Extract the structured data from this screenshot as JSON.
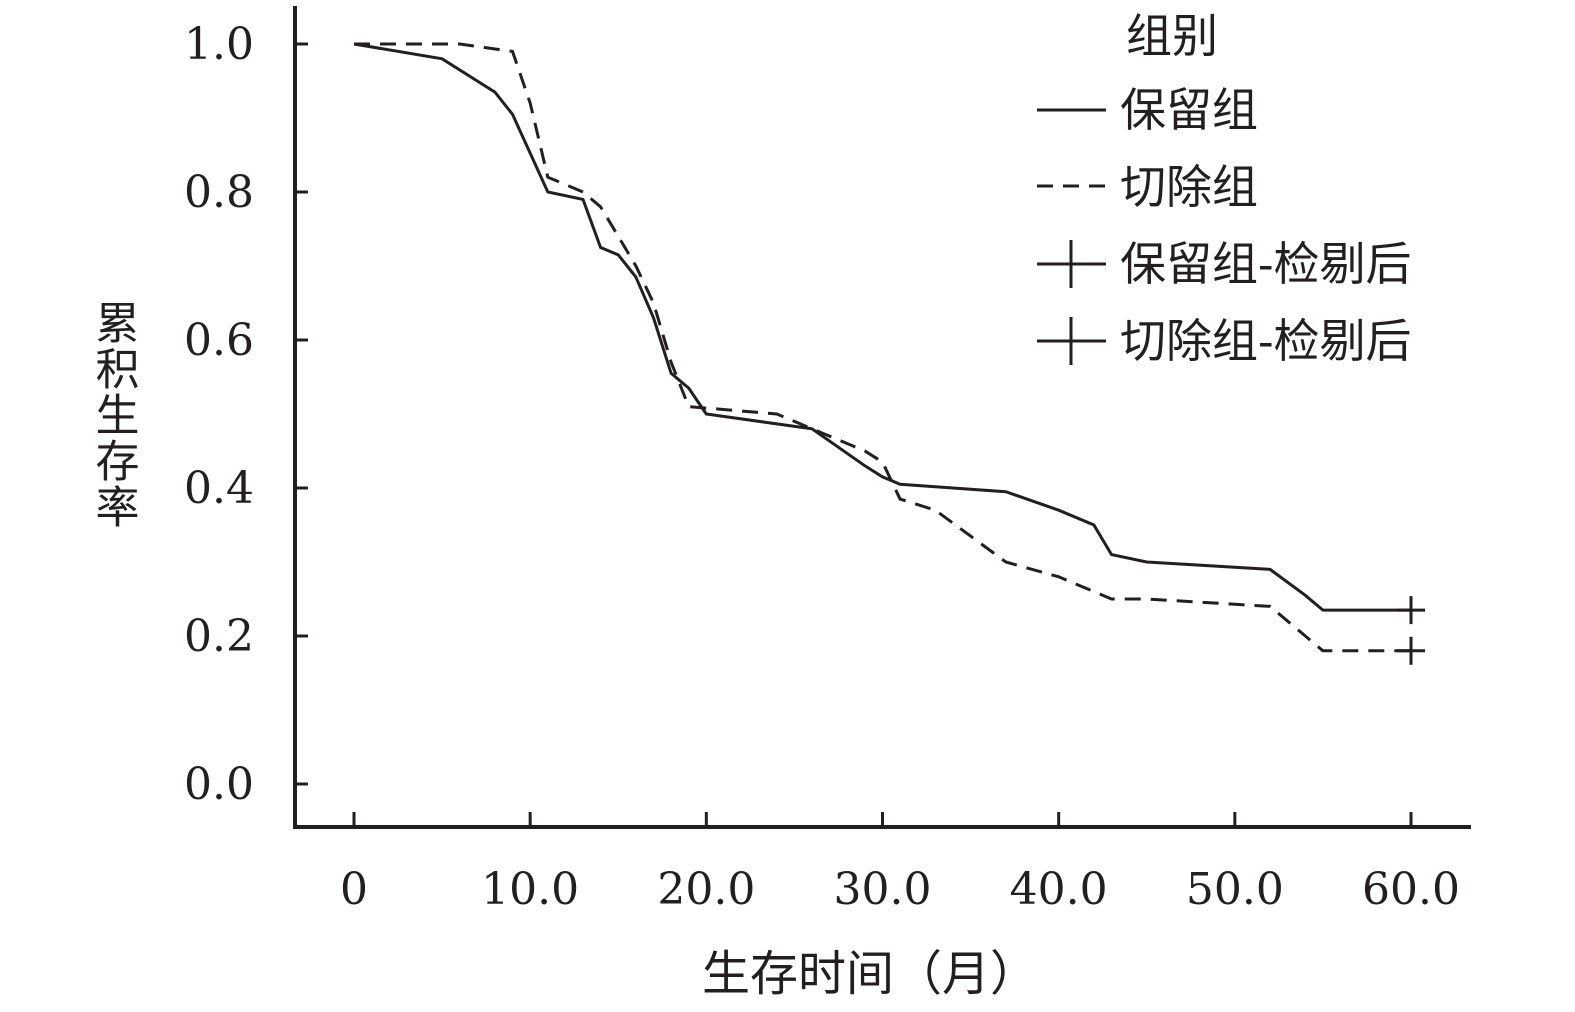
{
  "chart_data": {
    "type": "line",
    "xlabel": "生存时间（月）",
    "ylabel": "累积生存率",
    "xlim": [
      0,
      60
    ],
    "ylim": [
      0,
      1
    ],
    "xticks": [
      0,
      10,
      20,
      30,
      40,
      50,
      60
    ],
    "xtick_labels": [
      "0",
      "10.0",
      "20.0",
      "30.0",
      "40.0",
      "50.0",
      "60.0"
    ],
    "yticks": [
      0,
      0.2,
      0.4,
      0.6,
      0.8,
      1.0
    ],
    "ytick_labels": [
      "0.0",
      "0.2",
      "0.4",
      "0.6",
      "0.8",
      "1.0"
    ],
    "grid": false,
    "legend": {
      "title": "组别",
      "placement": "top-right",
      "entries": [
        {
          "label": "保留组",
          "style": "solid-line"
        },
        {
          "label": "切除组",
          "style": "dashed-line"
        },
        {
          "label": "保留组-检剔后",
          "style": "plus"
        },
        {
          "label": "切除组-检剔后",
          "style": "plus"
        }
      ]
    },
    "series": [
      {
        "name": "保留组",
        "style": "solid",
        "x": [
          0,
          5,
          8,
          9,
          11,
          13,
          14,
          15,
          16,
          17,
          18,
          19,
          20,
          26,
          29,
          30,
          31,
          37,
          40,
          42,
          43,
          45,
          52,
          54,
          55,
          60
        ],
        "y": [
          1.0,
          0.98,
          0.935,
          0.905,
          0.8,
          0.79,
          0.725,
          0.715,
          0.685,
          0.63,
          0.555,
          0.535,
          0.5,
          0.48,
          0.43,
          0.415,
          0.405,
          0.395,
          0.37,
          0.35,
          0.31,
          0.3,
          0.29,
          0.255,
          0.235,
          0.235
        ]
      },
      {
        "name": "切除组",
        "style": "dashed",
        "x": [
          0,
          6,
          9,
          10,
          11,
          13,
          14,
          15,
          16,
          17,
          18,
          19,
          24,
          26,
          29,
          30,
          31,
          33,
          37,
          40,
          43,
          45,
          52,
          53,
          55,
          60
        ],
        "y": [
          1.0,
          1.0,
          0.99,
          0.92,
          0.82,
          0.8,
          0.78,
          0.74,
          0.7,
          0.65,
          0.57,
          0.51,
          0.5,
          0.48,
          0.45,
          0.435,
          0.385,
          0.37,
          0.3,
          0.28,
          0.25,
          0.25,
          0.24,
          0.22,
          0.18,
          0.18
        ]
      }
    ],
    "censored": [
      {
        "name": "保留组-检剔后",
        "x": 60,
        "y": 0.235
      },
      {
        "name": "切除组-检剔后",
        "x": 60,
        "y": 0.18
      }
    ],
    "colors": {
      "ink": "#231f20",
      "background": "#ffffff"
    }
  }
}
